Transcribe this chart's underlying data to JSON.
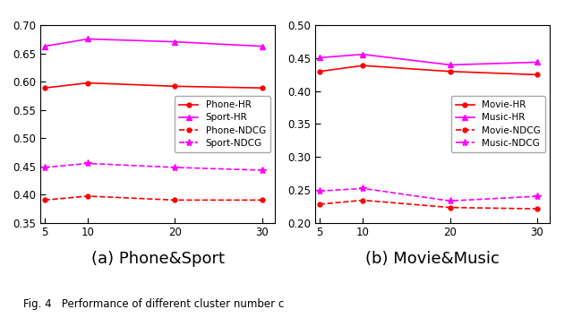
{
  "x": [
    5,
    10,
    20,
    30
  ],
  "phone_hr": [
    0.589,
    0.598,
    0.592,
    0.589
  ],
  "sport_hr": [
    0.663,
    0.676,
    0.671,
    0.663
  ],
  "phone_ndcg": [
    0.39,
    0.397,
    0.39,
    0.39
  ],
  "sport_ndcg": [
    0.448,
    0.455,
    0.448,
    0.443
  ],
  "movie_hr": [
    0.43,
    0.439,
    0.43,
    0.425
  ],
  "music_hr": [
    0.451,
    0.456,
    0.44,
    0.444
  ],
  "movie_ndcg": [
    0.228,
    0.234,
    0.223,
    0.221
  ],
  "music_ndcg": [
    0.248,
    0.252,
    0.233,
    0.24
  ],
  "red": "#FF0000",
  "magenta": "#FF00FF",
  "subtitle_a": "(a) Phone&Sport",
  "subtitle_b": "(b) Movie&Music",
  "fig_caption": "Fig. 4   Performance of different cluster number c",
  "legend_a": [
    "Phone-HR",
    "Sport-HR",
    "Phone-NDCG",
    "Sport-NDCG"
  ],
  "legend_b": [
    "Movie-HR",
    "Music-HR",
    "Movie-NDCG",
    "Music-NDCG"
  ],
  "ylim_a": [
    0.35,
    0.7
  ],
  "ylim_b": [
    0.2,
    0.5
  ],
  "yticks_a": [
    0.35,
    0.4,
    0.45,
    0.5,
    0.55,
    0.6,
    0.65,
    0.7
  ],
  "yticks_b": [
    0.2,
    0.25,
    0.3,
    0.35,
    0.4,
    0.45,
    0.5
  ]
}
